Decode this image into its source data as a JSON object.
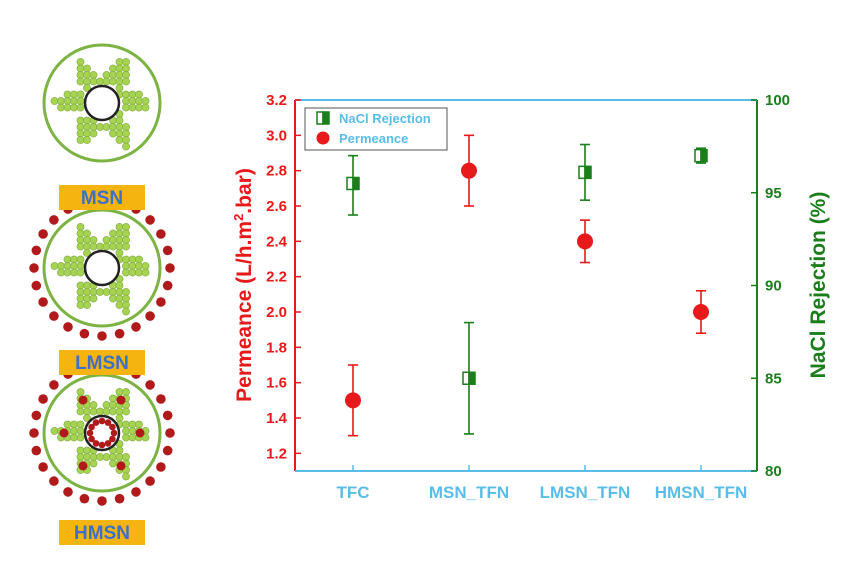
{
  "schematics": [
    {
      "label": "MSN",
      "outer_particles": false,
      "inner_particles": false
    },
    {
      "label": "LMSN",
      "outer_particles": true,
      "inner_particles": false
    },
    {
      "label": "HMSN",
      "outer_particles": true,
      "inner_particles": true
    }
  ],
  "colors": {
    "permeance": "#e8191a",
    "rejection": "#1a7f1a",
    "axis_blue": "#59bde8",
    "label_box": "#f5b40f",
    "label_text": "#3c70c8",
    "sphere_green": "#a6d452",
    "ring_green": "#7cb342",
    "particle_red": "#b01a1a"
  },
  "chart_data": {
    "type": "scatter",
    "categories": [
      "TFC",
      "MSN_TFN",
      "LMSN_TFN",
      "HMSN_TFN"
    ],
    "y_left": {
      "label_prefix": "Permeance (L/h.m",
      "label_sup": "2",
      "label_suffix": ".bar)",
      "min": 1.1,
      "max": 3.2,
      "ticks": [
        "1.2",
        "1.4",
        "1.6",
        "1.8",
        "2.0",
        "2.2",
        "2.4",
        "2.6",
        "2.8",
        "3.0",
        "3.2"
      ]
    },
    "y_right": {
      "label": "NaCl Rejection (%)",
      "min": 80,
      "max": 100,
      "ticks": [
        "80",
        "85",
        "90",
        "95",
        "100"
      ]
    },
    "legend": {
      "position": "top-left",
      "entries": [
        "NaCl Rejection",
        "Permeance"
      ]
    },
    "grid": false,
    "series": [
      {
        "name": "Permeance",
        "axis": "left",
        "values": [
          1.5,
          2.8,
          2.4,
          2.0
        ],
        "err_low": [
          1.3,
          2.6,
          2.28,
          1.88
        ],
        "err_high": [
          1.7,
          3.0,
          2.52,
          2.12
        ]
      },
      {
        "name": "NaCl Rejection",
        "axis": "right",
        "values": [
          95.5,
          85.0,
          96.1,
          97.0
        ],
        "err_low": [
          93.8,
          82.0,
          94.6,
          96.6
        ],
        "err_high": [
          97.0,
          88.0,
          97.6,
          97.4
        ]
      }
    ]
  }
}
